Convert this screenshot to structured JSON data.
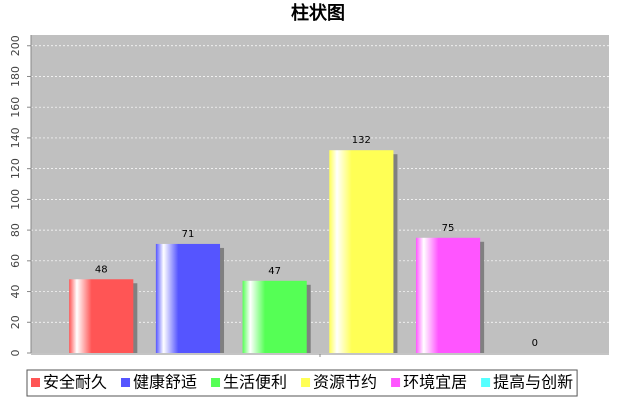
{
  "chart_data": {
    "type": "bar",
    "title": "柱状图",
    "categories": [
      null
    ],
    "series": [
      {
        "name": "安全耐久",
        "color": "#ff5555",
        "values": [
          48
        ]
      },
      {
        "name": "健康舒适",
        "color": "#5555ff",
        "values": [
          71
        ]
      },
      {
        "name": "生活便利",
        "color": "#55ff55",
        "values": [
          47
        ]
      },
      {
        "name": "资源节约",
        "color": "#ffff55",
        "values": [
          132
        ]
      },
      {
        "name": "环境宜居",
        "color": "#ff55ff",
        "values": [
          75
        ]
      },
      {
        "name": "提高与创新",
        "color": "#55ffff",
        "values": [
          0
        ]
      }
    ],
    "ylim": [
      0,
      207
    ],
    "yticks": [
      0,
      20,
      40,
      60,
      80,
      100,
      120,
      140,
      160,
      180,
      200
    ],
    "grid": true,
    "legend": "bottom"
  }
}
